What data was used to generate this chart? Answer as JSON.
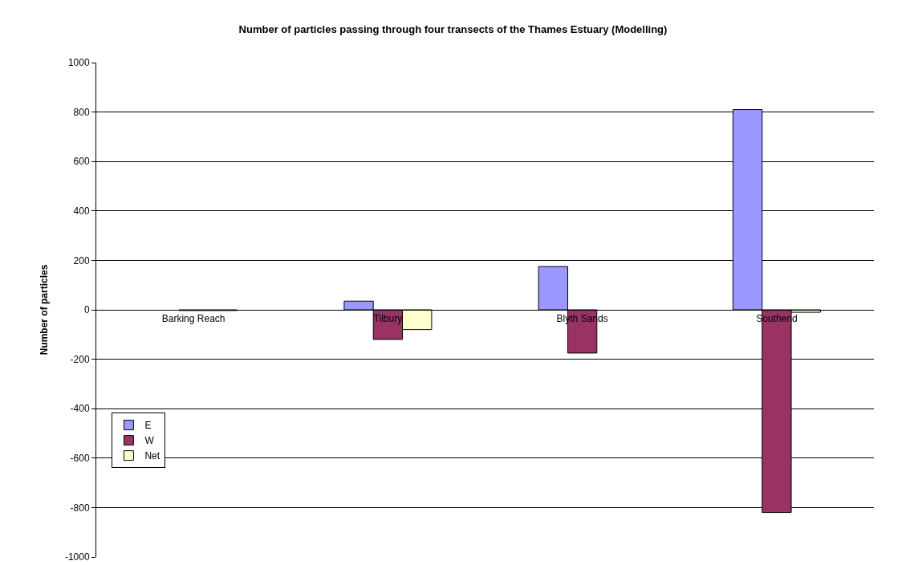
{
  "chart_data": {
    "type": "bar",
    "title": "Number of particles passing through four transects of the Thames Estuary (Modelling)",
    "ylabel": "Number of particles",
    "categories": [
      "Barking Reach",
      "Tilbury",
      "Blyth Sands",
      "Southend"
    ],
    "series": [
      {
        "name": "E",
        "color": "#9999ff",
        "values": [
          null,
          35,
          175,
          810
        ]
      },
      {
        "name": "W",
        "color": "#993366",
        "values": [
          -3,
          -120,
          -175,
          -820
        ]
      },
      {
        "name": "Net",
        "color": "#ffffcc",
        "values": [
          -3,
          -80,
          null,
          -10
        ]
      }
    ],
    "ylim": [
      -1000,
      1000
    ],
    "yticks": [
      -1000,
      -800,
      -600,
      -400,
      -200,
      0,
      200,
      400,
      600,
      800,
      1000
    ],
    "grid": "y",
    "legend": "bottom left"
  }
}
